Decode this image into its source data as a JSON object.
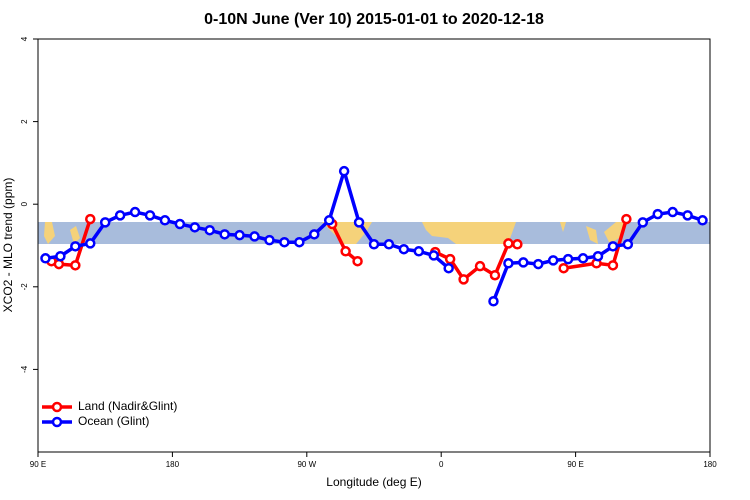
{
  "chart_data": {
    "type": "line",
    "title": "0-10N June (Ver 10)   2015-01-01 to 2020-12-18",
    "x_label": "Longitude (deg E)",
    "y_label": "XCO2 - MLO trend (ppm)",
    "xlim": [
      90,
      540
    ],
    "ylim": [
      -6,
      4
    ],
    "xticks": [
      {
        "value": 90,
        "label": "90 E"
      },
      {
        "value": 180,
        "label": "180"
      },
      {
        "value": 270,
        "label": "90 W"
      },
      {
        "value": 360,
        "label": "0"
      },
      {
        "value": 450,
        "label": "90 E"
      },
      {
        "value": 540,
        "label": "180"
      }
    ],
    "yticks": [
      -4,
      -2,
      0,
      2,
      4
    ],
    "legend": "bottom-left",
    "series": [
      {
        "name": "Land (Nadir&Glint)",
        "color": "#ff0000",
        "x": [
          99,
          104,
          115,
          125,
          null,
          287,
          296,
          304,
          null,
          356,
          366,
          375,
          386,
          396,
          405,
          411,
          null,
          442,
          464,
          475,
          484
        ],
        "values": [
          -1.38,
          -1.45,
          -1.48,
          -0.36,
          null,
          -0.48,
          -1.14,
          -1.38,
          null,
          -1.16,
          -1.33,
          -1.82,
          -1.5,
          -1.72,
          -0.95,
          -0.97,
          null,
          -1.55,
          -1.43,
          -1.48,
          -0.36
        ]
      },
      {
        "name": "Ocean (Glint)",
        "color": "#0000ff",
        "x": [
          95,
          105,
          115,
          125,
          135,
          145,
          155,
          165,
          175,
          185,
          195,
          205,
          215,
          225,
          235,
          245,
          255,
          265,
          275,
          285,
          295,
          305,
          315,
          325,
          335,
          345,
          355,
          365,
          null,
          395,
          405,
          415,
          425,
          435,
          445,
          455,
          465,
          475,
          485,
          495,
          505,
          515,
          525,
          535
        ],
        "values": [
          -1.31,
          -1.26,
          -1.02,
          -0.95,
          -0.44,
          -0.27,
          -0.19,
          -0.27,
          -0.39,
          -0.48,
          -0.56,
          -0.63,
          -0.73,
          -0.75,
          -0.78,
          -0.87,
          -0.92,
          -0.92,
          -0.73,
          -0.39,
          0.8,
          -0.44,
          -0.97,
          -0.97,
          -1.09,
          -1.14,
          -1.24,
          -1.55,
          null,
          -2.35,
          -1.43,
          -1.41,
          -1.45,
          -1.36,
          -1.33,
          -1.31,
          -1.26,
          -1.02,
          -0.97,
          -0.44,
          -0.24,
          -0.19,
          -0.27,
          -0.39
        ]
      }
    ]
  }
}
